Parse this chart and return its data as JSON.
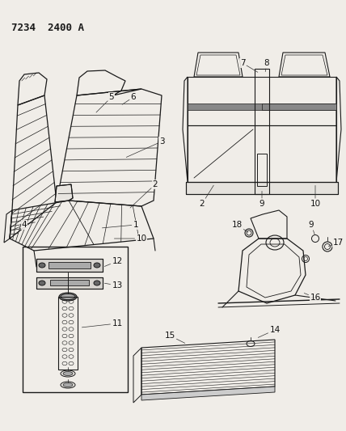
{
  "background_color": "#f0ede8",
  "title_text": "7234  2400 A",
  "line_color": "#1a1a1a",
  "label_fontsize": 7.5,
  "fig_w": 4.28,
  "fig_h": 5.33,
  "dpi": 100
}
